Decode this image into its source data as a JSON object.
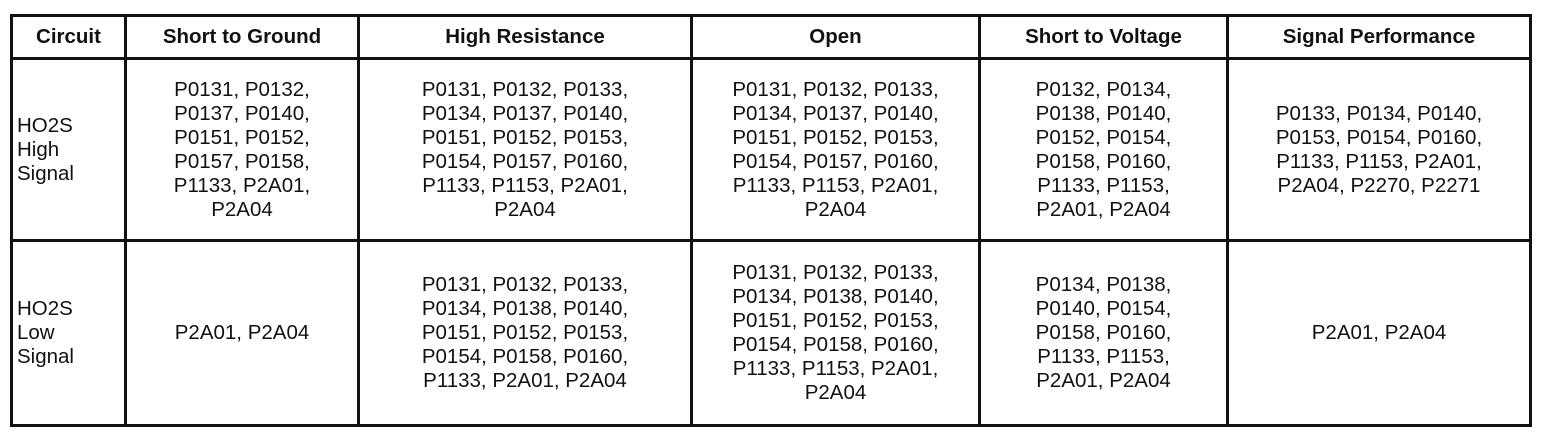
{
  "headers": [
    "Circuit",
    "Short to Ground",
    "High Resistance",
    "Open",
    "Short to Voltage",
    "Signal Performance"
  ],
  "rows": [
    {
      "circuit": "HO2S\nHigh\nSignal",
      "short_to_ground": "P0131, P0132,\nP0137, P0140,\nP0151, P0152,\nP0157, P0158,\nP1133, P2A01,\nP2A04",
      "high_resistance": "P0131, P0132, P0133,\nP0134, P0137, P0140,\nP0151, P0152, P0153,\nP0154, P0157, P0160,\nP1133, P1153, P2A01,\nP2A04",
      "open": "P0131, P0132, P0133,\nP0134, P0137, P0140,\nP0151, P0152, P0153,\nP0154, P0157, P0160,\nP1133, P1153, P2A01,\nP2A04",
      "short_to_voltage": "P0132, P0134,\nP0138, P0140,\nP0152, P0154,\nP0158, P0160,\nP1133, P1153,\nP2A01, P2A04",
      "signal_performance": "P0133, P0134, P0140,\nP0153, P0154, P0160,\nP1133, P1153, P2A01,\nP2A04, P2270, P2271"
    },
    {
      "circuit": "HO2S\nLow\nSignal",
      "short_to_ground": "P2A01, P2A04",
      "high_resistance": "P0131, P0132, P0133,\nP0134, P0138, P0140,\nP0151, P0152, P0153,\nP0154, P0158, P0160,\nP1133, P2A01, P2A04",
      "open": "P0131, P0132, P0133,\nP0134, P0138, P0140,\nP0151, P0152, P0153,\nP0154, P0158, P0160,\nP1133, P1153, P2A01,\nP2A04",
      "short_to_voltage": "P0134, P0138,\nP0140, P0154,\nP0158, P0160,\nP1133, P1153,\nP2A01, P2A04",
      "signal_performance": "P2A01, P2A04"
    }
  ]
}
